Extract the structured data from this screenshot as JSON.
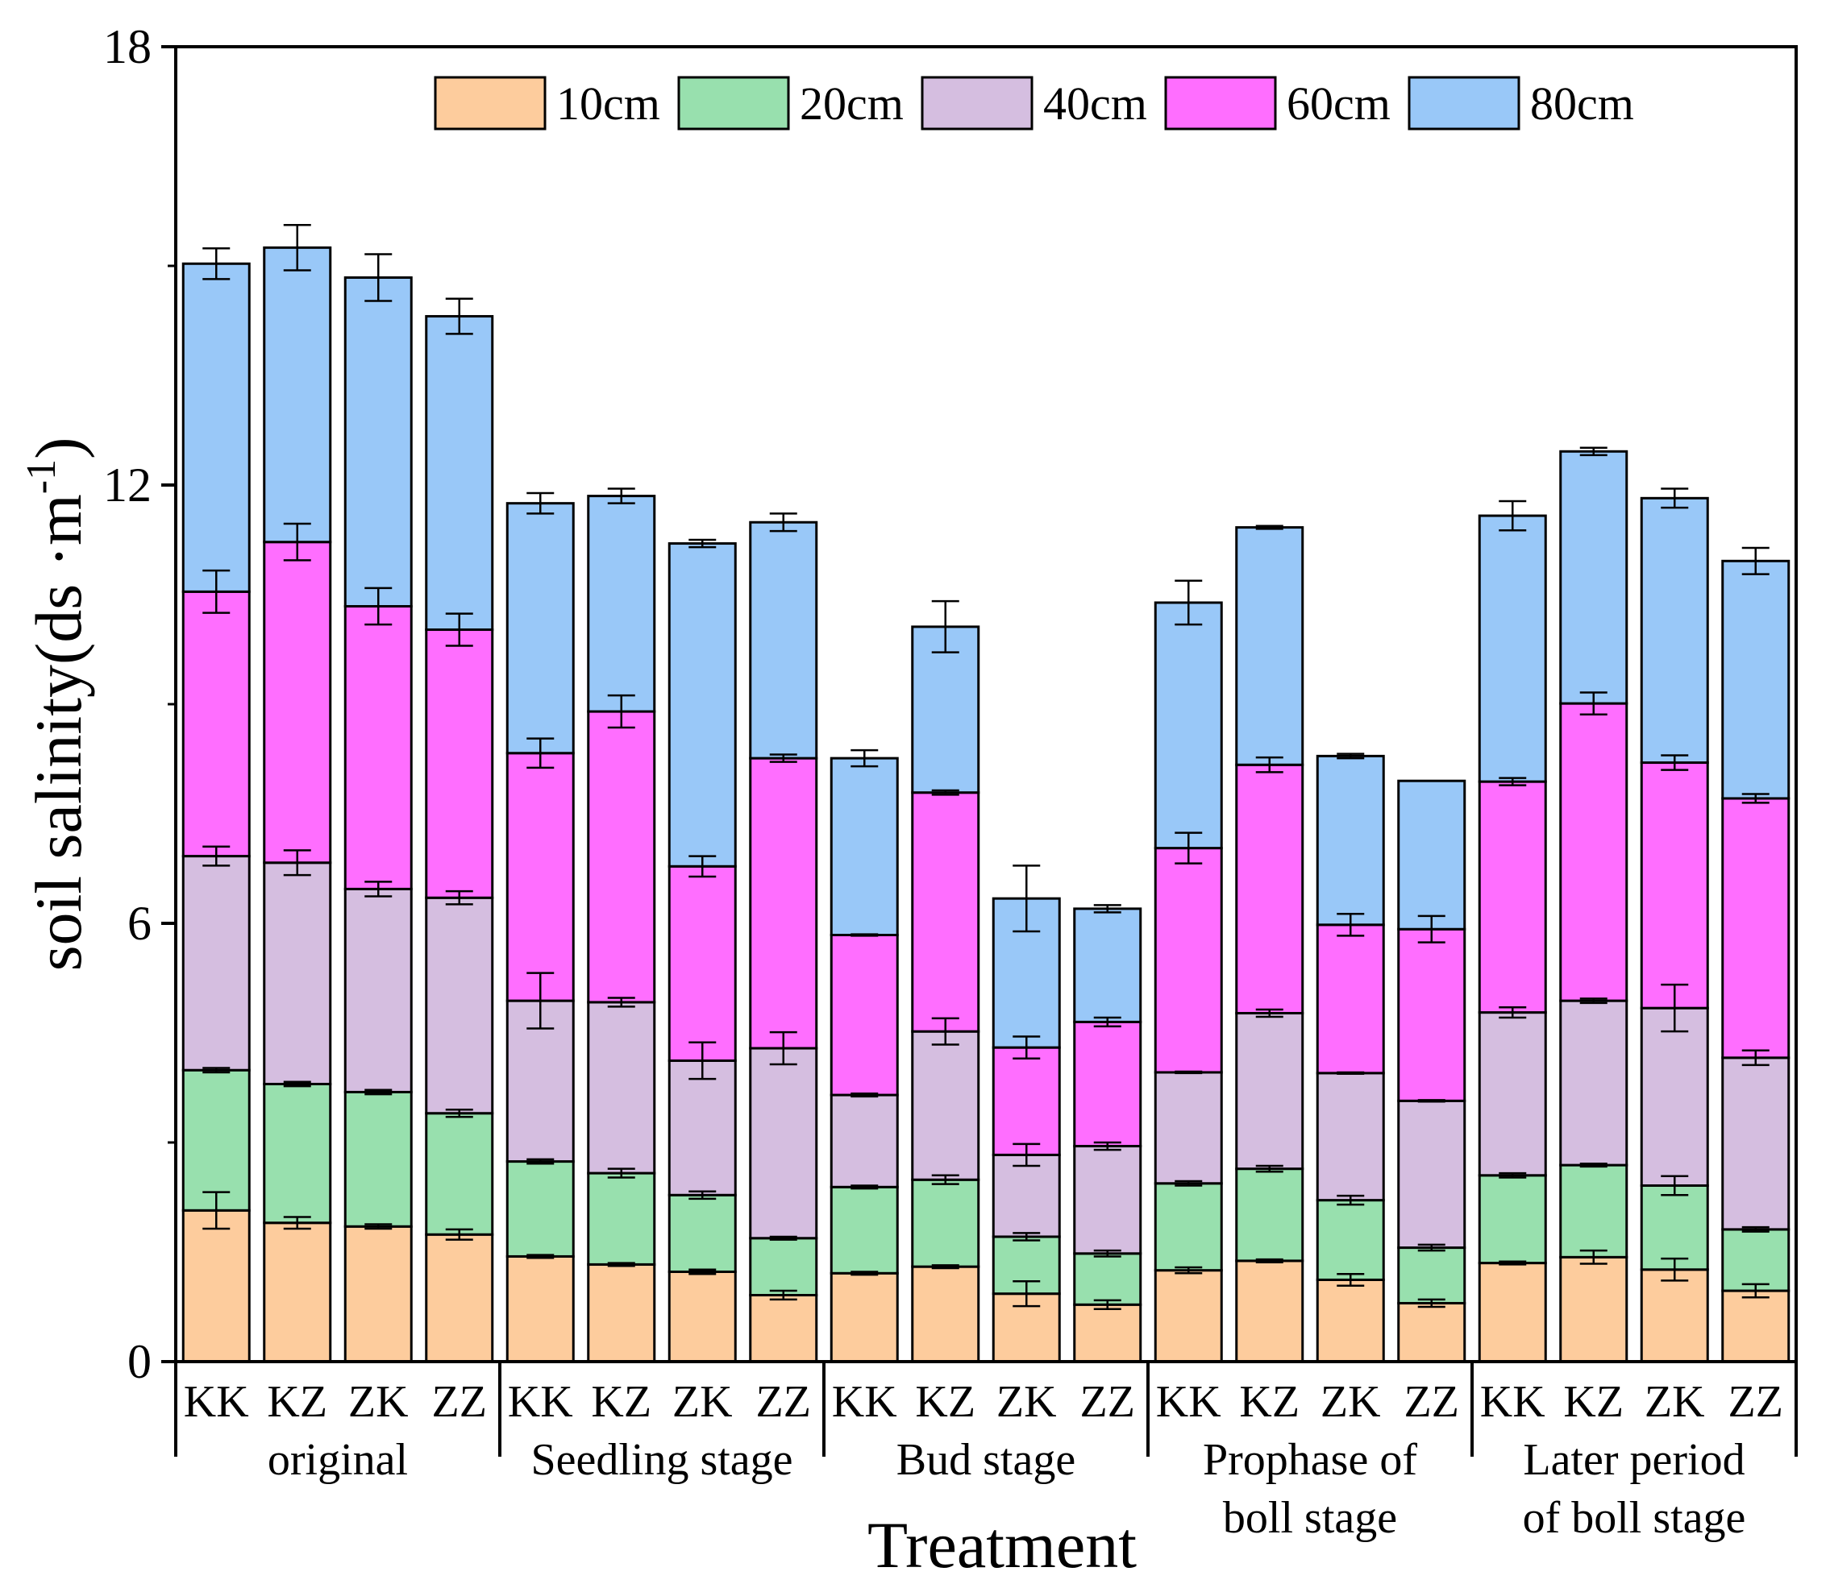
{
  "chart_data": {
    "type": "bar",
    "stacked": true,
    "title": "",
    "xlabel": "Treatment",
    "ylabel": "soil salinity(ds ·m",
    "ylabel_sup": "-1",
    "ylabel_close": ")",
    "ylim": [
      0,
      18
    ],
    "yticks": [
      0,
      6,
      12,
      18
    ],
    "legend_position": "top",
    "groups": [
      {
        "label_lines": [
          "original"
        ],
        "categories": [
          "KK",
          "KZ",
          "ZK",
          "ZZ"
        ]
      },
      {
        "label_lines": [
          "Seedling stage"
        ],
        "categories": [
          "KK",
          "KZ",
          "ZK",
          "ZZ"
        ]
      },
      {
        "label_lines": [
          "Bud stage"
        ],
        "categories": [
          "KK",
          "KZ",
          "ZK",
          "ZZ"
        ]
      },
      {
        "label_lines": [
          "Prophase of",
          "boll stage"
        ],
        "categories": [
          "KK",
          "KZ",
          "ZK",
          "ZZ"
        ]
      },
      {
        "label_lines": [
          "Later period",
          "of boll stage"
        ],
        "categories": [
          "KK",
          "KZ",
          "ZK",
          "ZZ"
        ]
      }
    ],
    "series": [
      {
        "name": "10cm",
        "color": "#FDCC9D",
        "values": [
          2.07,
          1.9,
          1.85,
          1.74,
          1.44,
          1.33,
          1.23,
          0.91,
          1.21,
          1.3,
          0.93,
          0.78,
          1.25,
          1.38,
          1.12,
          0.8,
          1.35,
          1.43,
          1.26,
          0.97
        ],
        "errors": [
          0.25,
          0.08,
          0.03,
          0.07,
          0.02,
          0.02,
          0.03,
          0.06,
          0.02,
          0.02,
          0.17,
          0.06,
          0.04,
          0.02,
          0.08,
          0.05,
          0.02,
          0.09,
          0.15,
          0.09
        ]
      },
      {
        "name": "20cm",
        "color": "#98E0AE",
        "values": [
          1.92,
          1.9,
          1.84,
          1.66,
          1.3,
          1.25,
          1.05,
          0.78,
          1.18,
          1.19,
          0.78,
          0.7,
          1.19,
          1.26,
          1.09,
          0.76,
          1.2,
          1.26,
          1.15,
          0.84
        ],
        "errors": [
          0.03,
          0.03,
          0.03,
          0.05,
          0.03,
          0.06,
          0.05,
          0.02,
          0.02,
          0.06,
          0.05,
          0.04,
          0.03,
          0.04,
          0.06,
          0.04,
          0.03,
          0.02,
          0.13,
          0.03
        ]
      },
      {
        "name": "40cm",
        "color": "#D5BEE0",
        "values": [
          2.93,
          3.03,
          2.78,
          2.95,
          2.2,
          2.34,
          1.84,
          2.6,
          1.26,
          2.03,
          1.12,
          1.47,
          1.52,
          2.13,
          1.74,
          2.01,
          2.23,
          2.25,
          2.43,
          2.35
        ],
        "errors": [
          0.13,
          0.17,
          0.1,
          0.09,
          0.38,
          0.06,
          0.25,
          0.22,
          0.02,
          0.18,
          0.15,
          0.05,
          0.01,
          0.05,
          0.01,
          0.01,
          0.07,
          0.03,
          0.32,
          0.1
        ]
      },
      {
        "name": "60cm",
        "color": "#FF6EFF",
        "values": [
          3.62,
          4.39,
          3.87,
          3.67,
          3.39,
          3.98,
          2.66,
          3.97,
          2.19,
          3.27,
          1.47,
          1.7,
          3.07,
          3.4,
          2.03,
          2.35,
          3.16,
          4.07,
          3.36,
          3.55
        ],
        "errors": [
          0.29,
          0.25,
          0.25,
          0.22,
          0.2,
          0.22,
          0.14,
          0.05,
          0.01,
          0.03,
          0.15,
          0.06,
          0.21,
          0.1,
          0.15,
          0.18,
          0.05,
          0.15,
          0.1,
          0.06
        ]
      },
      {
        "name": "80cm",
        "color": "#99C8F8",
        "values": [
          4.49,
          4.03,
          4.5,
          4.29,
          3.42,
          2.95,
          4.42,
          3.23,
          2.42,
          2.27,
          2.04,
          1.55,
          3.36,
          3.25,
          2.31,
          2.03,
          3.64,
          3.45,
          3.62,
          3.25
        ],
        "errors": [
          0.21,
          0.31,
          0.32,
          0.24,
          0.14,
          0.1,
          0.05,
          0.12,
          0.11,
          0.35,
          0.45,
          0.05,
          0.3,
          0.02,
          0.03,
          0.0,
          0.2,
          0.05,
          0.13,
          0.18
        ]
      }
    ]
  }
}
